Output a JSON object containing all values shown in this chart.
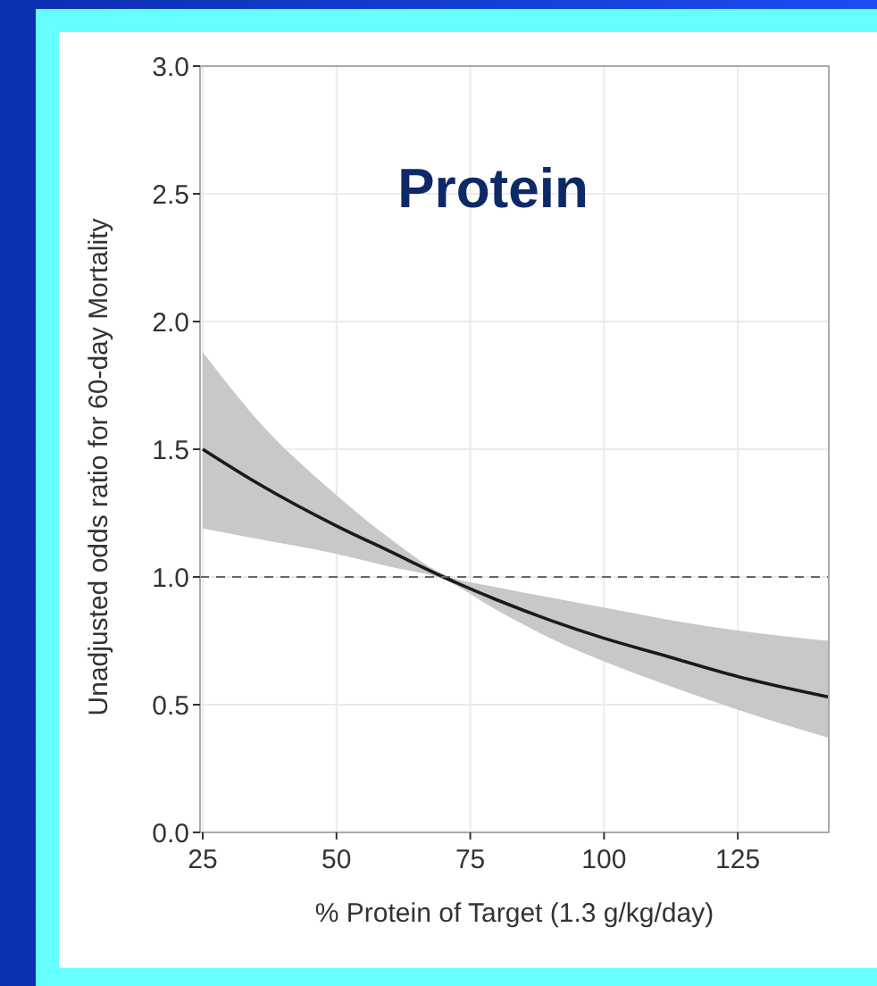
{
  "chart_data": {
    "type": "line",
    "title": "Protein",
    "xlabel": "% Protein of Target (1.3 g/kg/day)",
    "ylabel": "Unadjusted odds ratio for 60-day Mortality",
    "x": [
      25,
      35,
      50,
      60,
      70,
      80,
      90,
      100,
      110,
      125,
      142
    ],
    "series": [
      {
        "color": "#1a1a1a",
        "values": [
          1.5,
          1.37,
          1.2,
          1.1,
          1.0,
          0.91,
          0.83,
          0.76,
          0.7,
          0.61,
          0.53
        ],
        "lower": [
          1.19,
          1.15,
          1.09,
          1.04,
          0.99,
          0.87,
          0.76,
          0.67,
          0.59,
          0.48,
          0.37
        ],
        "upper": [
          1.88,
          1.62,
          1.32,
          1.15,
          1.01,
          0.96,
          0.92,
          0.88,
          0.84,
          0.79,
          0.75
        ]
      }
    ],
    "xlim": [
      24.5,
      142
    ],
    "xticks": [
      25,
      50,
      75,
      100,
      125
    ],
    "ylim": [
      0,
      3
    ],
    "yticks": [
      {
        "value": 0,
        "label": "0.0"
      },
      {
        "value": 0.5,
        "label": "0.5"
      },
      {
        "value": 1,
        "label": "1.0"
      },
      {
        "value": 1.5,
        "label": "1.5"
      },
      {
        "value": 2,
        "label": "2.0"
      },
      {
        "value": 2.5,
        "label": "2.5"
      },
      {
        "value": 3,
        "label": "3.0"
      }
    ],
    "ref_lines": [
      {
        "axis": "y",
        "value": 1,
        "color": "#666666",
        "line_style": "dashed"
      }
    ],
    "grid": true,
    "marker": "none",
    "line_style": "solid"
  }
}
